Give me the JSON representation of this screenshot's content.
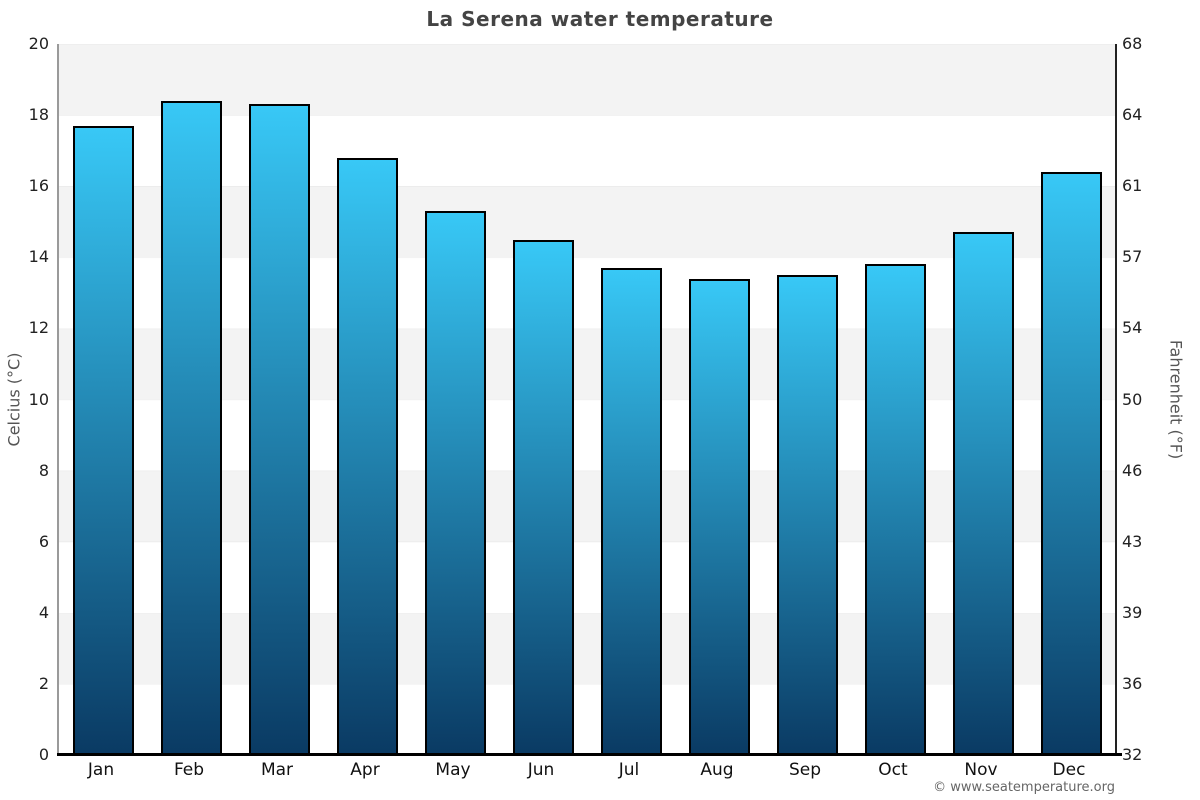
{
  "title": "La Serena water temperature",
  "watermark": "© www.seatemperature.org",
  "axes": {
    "left_label": "Celcius (°C)",
    "right_label": "Fahrenheit (°F)"
  },
  "chart_data": {
    "type": "bar",
    "title": "La Serena water temperature",
    "categories": [
      "Jan",
      "Feb",
      "Mar",
      "Apr",
      "May",
      "Jun",
      "Jul",
      "Aug",
      "Sep",
      "Oct",
      "Nov",
      "Dec"
    ],
    "values": [
      17.7,
      18.4,
      18.3,
      16.8,
      15.3,
      14.5,
      13.7,
      13.4,
      13.5,
      13.8,
      14.7,
      16.4
    ],
    "xlabel": "",
    "ylabel_left": "Celcius (°C)",
    "ylabel_right": "Fahrenheit (°F)",
    "ylim": [
      0,
      20
    ],
    "celsius_ticks": [
      0,
      2,
      4,
      6,
      8,
      10,
      12,
      14,
      16,
      18,
      20
    ],
    "fahrenheit_ticks": [
      32,
      36,
      39,
      43,
      46,
      50,
      54,
      57,
      61,
      64,
      68
    ],
    "grid": "horizontal alternating bands",
    "legend": "none",
    "colors": {
      "bar_gradient_top": "#38c8f6",
      "bar_gradient_bottom": "#0a3a63",
      "bar_border": "#000000",
      "band_gray": "#f3f3f3",
      "title_text": "#444444",
      "axis_text": "#222222"
    }
  }
}
